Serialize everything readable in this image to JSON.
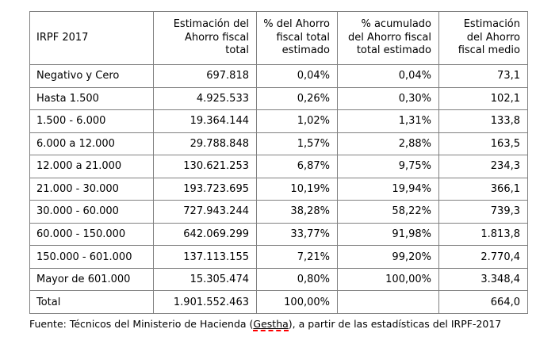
{
  "colors": {
    "border": "#808080",
    "text": "#000000",
    "background": "#ffffff",
    "spellcheck_underline": "#ff0000"
  },
  "table": {
    "headers": [
      "IRPF 2017",
      "Estimación del\nAhorro fiscal\ntotal",
      "% del Ahorro\nfiscal total\nestimado",
      "% acumulado\ndel Ahorro fiscal\ntotal estimado",
      "Estimación\ndel Ahorro\nfiscal medio"
    ],
    "rows": [
      [
        "Negativo y Cero",
        "697.818",
        "0,04%",
        "0,04%",
        "73,1"
      ],
      [
        "Hasta 1.500",
        "4.925.533",
        "0,26%",
        "0,30%",
        "102,1"
      ],
      [
        "1.500 - 6.000",
        "19.364.144",
        "1,02%",
        "1,31%",
        "133,8"
      ],
      [
        "6.000 a 12.000",
        "29.788.848",
        "1,57%",
        "2,88%",
        "163,5"
      ],
      [
        "12.000 a 21.000",
        "130.621.253",
        "6,87%",
        "9,75%",
        "234,3"
      ],
      [
        "21.000 - 30.000",
        "193.723.695",
        "10,19%",
        "19,94%",
        "366,1"
      ],
      [
        "30.000 - 60.000",
        "727.943.244",
        "38,28%",
        "58,22%",
        "739,3"
      ],
      [
        "60.000 - 150.000",
        "642.069.299",
        "33,77%",
        "91,98%",
        "1.813,8"
      ],
      [
        "150.000 - 601.000",
        "137.113.155",
        "7,21%",
        "99,20%",
        "2.770,4"
      ],
      [
        "Mayor de 601.000",
        "15.305.474",
        "0,80%",
        "100,00%",
        "3.348,4"
      ],
      [
        "Total",
        "1.901.552.463",
        "100,00%",
        "",
        "664,0"
      ]
    ]
  },
  "footer": {
    "prefix": "Fuente: Técnicos del Ministerio de Hacienda (",
    "highlight": "Gestha",
    "suffix": "), a partir de las estadísticas del IRPF-2017"
  }
}
